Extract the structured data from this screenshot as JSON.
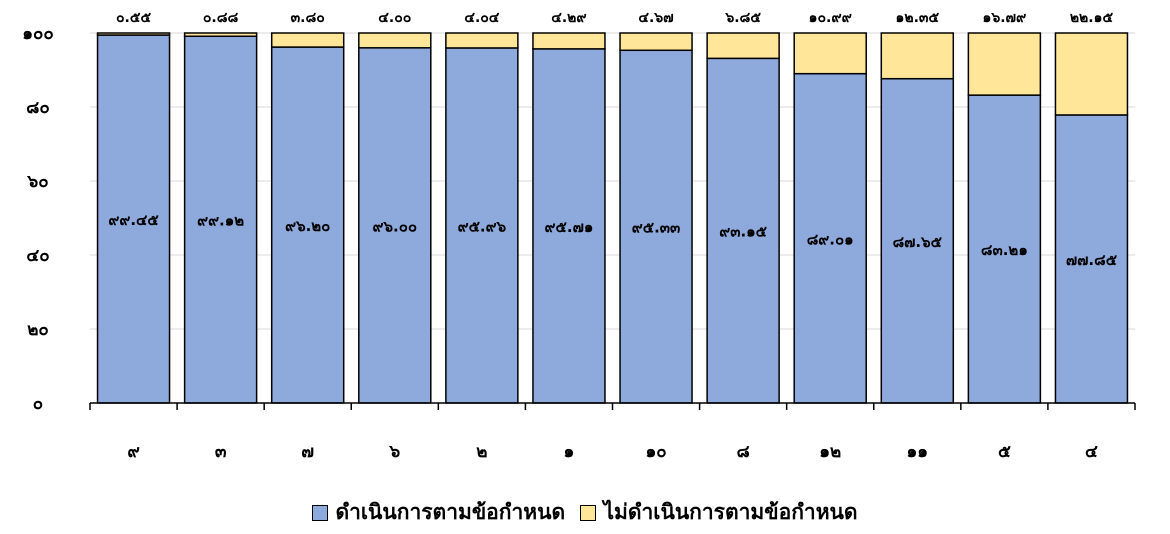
{
  "chart_data": {
    "type": "bar",
    "stacked": true,
    "categories": [
      "๙",
      "๓",
      "๗",
      "๖",
      "๒",
      "๑",
      "๑๐",
      "๘",
      "๑๒",
      "๑๑",
      "๕",
      "๔"
    ],
    "series": [
      {
        "name": "ดำเนินการตามข้อกำหนด",
        "color": "#8EA9DB",
        "values": [
          99.45,
          99.12,
          96.2,
          96.0,
          95.96,
          95.71,
          95.33,
          93.15,
          89.01,
          87.65,
          83.21,
          77.85
        ],
        "labels": [
          "๙๙.๔๕",
          "๙๙.๑๒",
          "๙๖.๒๐",
          "๙๖.๐๐",
          "๙๕.๙๖",
          "๙๕.๗๑",
          "๙๕.๓๓",
          "๙๓.๑๕",
          "๘๙.๐๑",
          "๘๗.๖๕",
          "๘๓.๒๑",
          "๗๗.๘๕"
        ]
      },
      {
        "name": "ไม่ดำเนินการตามข้อกำหนด",
        "color": "#FFE699",
        "values": [
          0.55,
          0.88,
          3.8,
          4.0,
          4.04,
          4.29,
          4.67,
          6.85,
          10.99,
          12.35,
          16.79,
          22.15
        ],
        "labels": [
          "๐.๕๕",
          "๐.๘๘",
          "๓.๘๐",
          "๔.๐๐",
          "๔.๐๔",
          "๔.๒๙",
          "๔.๖๗",
          "๖.๘๕",
          "๑๐.๙๙",
          "๑๒.๓๕",
          "๑๖.๗๙",
          "๒๒.๑๕"
        ]
      }
    ],
    "ylim": [
      0,
      100
    ],
    "yticks": [
      0,
      20,
      40,
      60,
      80,
      100
    ],
    "ytick_labels": [
      "๐",
      "๒๐",
      "๔๐",
      "๖๐",
      "๘๐",
      "๑๐๐"
    ],
    "grid": true,
    "legend_position": "bottom"
  }
}
